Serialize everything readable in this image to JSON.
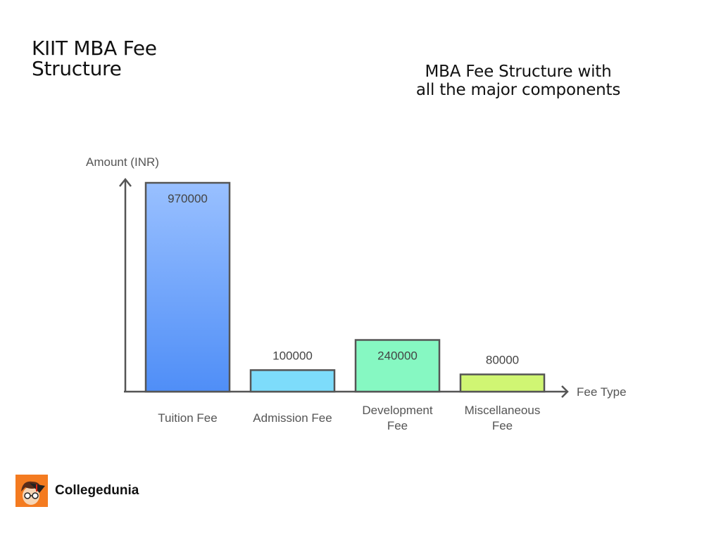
{
  "header": {
    "title_line1": "KIIT MBA Fee",
    "title_line2": "Structure",
    "subtitle_line1": "MBA Fee Structure with",
    "subtitle_line2": "all the major components"
  },
  "chart_data": {
    "type": "bar",
    "title": "KIIT MBA Fee Structure",
    "subtitle": "MBA Fee Structure with all the major components",
    "xlabel": "Fee Type",
    "ylabel": "Amount (INR)",
    "categories": [
      "Tuition Fee",
      "Admission Fee",
      "Development Fee",
      "Miscellaneous Fee"
    ],
    "values": [
      970000,
      100000,
      240000,
      80000
    ],
    "value_labels": [
      "970000",
      "100000",
      "240000",
      "80000"
    ],
    "category_lines": [
      [
        "Tuition Fee"
      ],
      [
        "Admission Fee"
      ],
      [
        "Development",
        "Fee"
      ],
      [
        "Miscellaneous",
        "Fee"
      ]
    ],
    "colors": [
      "#4f8ef7",
      "#7ddcfb",
      "#86f8c2",
      "#d0f673"
    ],
    "gradient_top": [
      "#99c0ff",
      "#7ddcfb",
      "#86f8c2",
      "#d0f673"
    ],
    "grid": false,
    "legend": "none",
    "ylim": [
      0,
      970000
    ]
  },
  "branding": {
    "logo_text": "Collegedunia",
    "logo_color": "#f47b20"
  }
}
